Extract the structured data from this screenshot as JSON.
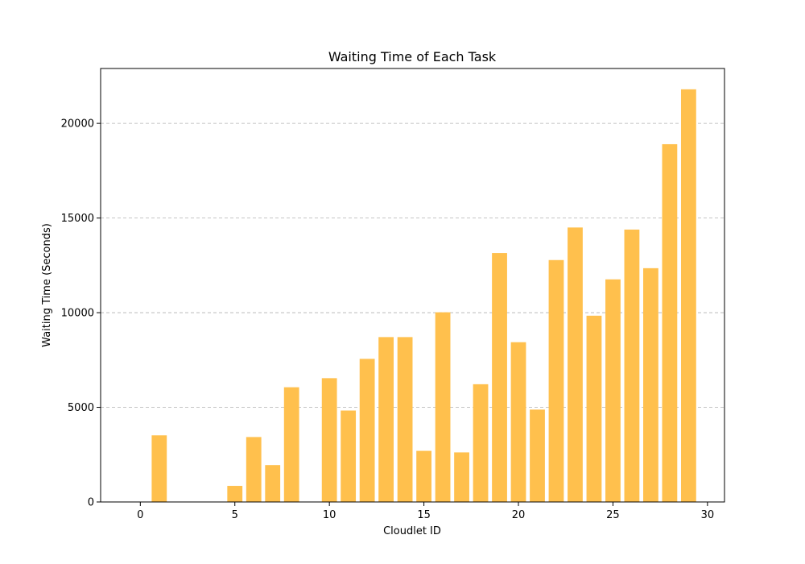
{
  "chart_data": {
    "type": "bar",
    "title": "Waiting Time of Each Task",
    "xlabel": "Cloudlet ID",
    "ylabel": "Waiting Time (Seconds)",
    "x": [
      0,
      1,
      2,
      3,
      4,
      5,
      6,
      7,
      8,
      9,
      10,
      11,
      12,
      13,
      14,
      15,
      16,
      17,
      18,
      19,
      20,
      21,
      22,
      23,
      24,
      25,
      26,
      27,
      28,
      29
    ],
    "values": [
      0,
      3520,
      0,
      0,
      0,
      850,
      3430,
      1950,
      6060,
      0,
      6540,
      4830,
      7560,
      8710,
      8710,
      2700,
      10020,
      2620,
      6220,
      13150,
      8440,
      4880,
      12780,
      14500,
      9840,
      11760,
      14390,
      12350,
      18900,
      21800
    ],
    "xlim": [
      -2.1,
      30.9
    ],
    "ylim": [
      0,
      22900
    ],
    "x_ticks": [
      0,
      5,
      10,
      15,
      20,
      25,
      30
    ],
    "y_ticks": [
      0,
      5000,
      10000,
      15000,
      20000
    ],
    "bar_color": "#FFC04D",
    "grid": "y-dashed",
    "legend": "none"
  }
}
